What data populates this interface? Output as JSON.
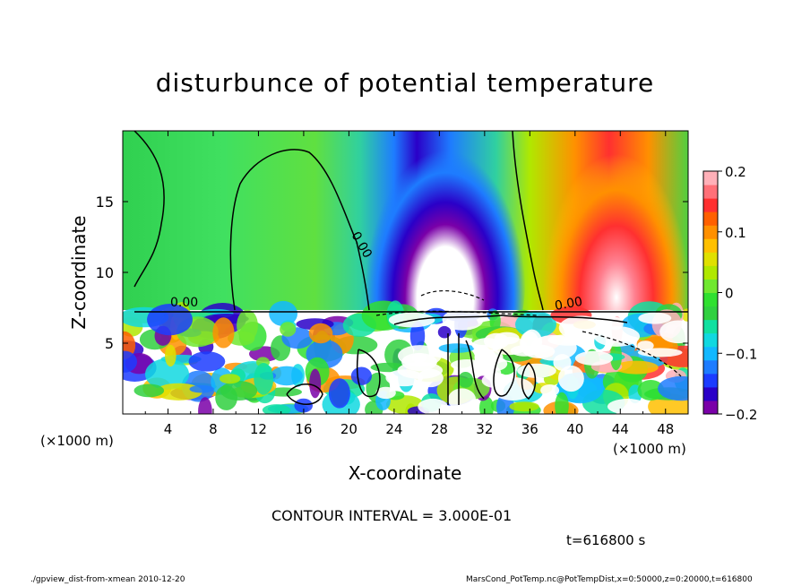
{
  "chart_data": {
    "type": "heatmap",
    "title": "disturbunce of potential temperature",
    "xlabel": "X-coordinate",
    "ylabel": "Z-coordinate",
    "x_unit": "(×1000 m)",
    "z_unit": "(×1000 m)",
    "xlim": [
      0,
      50
    ],
    "zlim": [
      0,
      20
    ],
    "x_ticks": [
      4,
      8,
      12,
      16,
      20,
      24,
      28,
      32,
      36,
      40,
      44,
      48
    ],
    "z_ticks": [
      5,
      10,
      15
    ],
    "colorbar": {
      "range": [
        -0.2,
        0.2
      ],
      "ticks": [
        0.2,
        0.1,
        0,
        -0.1,
        -0.2
      ],
      "tick_labels": [
        "0.2",
        "0.1",
        "0",
        "−0.1",
        "−0.2"
      ],
      "colors": [
        "#7a00a8",
        "#2a00c8",
        "#1c3cff",
        "#1e7cff",
        "#12b8ff",
        "#10d8e0",
        "#10e0a0",
        "#30d040",
        "#30e030",
        "#70e830",
        "#b0e800",
        "#e0e000",
        "#ffc000",
        "#ff9000",
        "#ff6000",
        "#ff3030",
        "#ff7078",
        "#ffb0b8"
      ]
    },
    "contour_labels": [
      "0.00",
      "0.00",
      "0.00"
    ],
    "contour_interval_text": "CONTOUR INTERVAL = 3.000E-01",
    "time_label": "t=616800 s",
    "upper_layer_features": [
      {
        "x": 29,
        "z_top": 15,
        "value": -0.2,
        "kind": "cold-core"
      },
      {
        "x": 44,
        "z_top": 15,
        "value": 0.2,
        "kind": "warm-core"
      },
      {
        "x": 12,
        "z_top": 17,
        "value": 0.0,
        "kind": "neutral"
      }
    ]
  },
  "footer": {
    "left": "./gpview_dist-from-xmean  2010-12-20",
    "right": "MarsCond_PotTemp.nc@PotTempDist,x=0:50000,z=0:20000,t=616800"
  }
}
